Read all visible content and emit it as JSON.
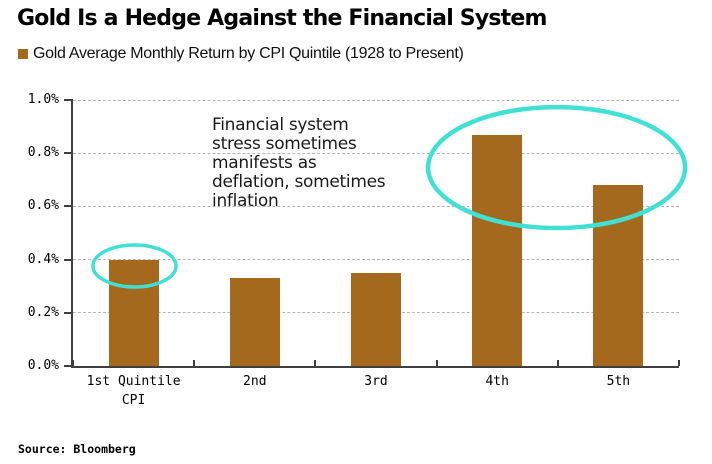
{
  "page": {
    "background": "#ffffff"
  },
  "header": {
    "title": "Gold Is a Hedge Against the Financial System"
  },
  "legend": {
    "swatch_color": "#A5691E",
    "label": "Gold Average Monthly Return by CPI Quintile (1928 to Present)"
  },
  "footer": {
    "source": "Source: Bloomberg"
  },
  "colors": {
    "bar": "#A5691E",
    "highlight": "#40E0D4",
    "grid": "#B3B3B3",
    "axis": "#3F3F3F",
    "text": "#000000"
  },
  "chart_data": {
    "type": "bar",
    "title": "Gold Average Monthly Return by CPI Quintile (1928 to Present)",
    "categories": [
      "1st Quintile\nCPI",
      "2nd",
      "3rd",
      "4th",
      "5th"
    ],
    "values": [
      0.4,
      0.33,
      0.35,
      0.87,
      0.68
    ],
    "value_format": "percent (average monthly return)",
    "xlabel": "",
    "ylabel": "",
    "ylim": [
      0.0,
      1.0
    ],
    "ytick_step": 0.2,
    "ytick_labels": [
      "0.0%",
      "0.2%",
      "0.4%",
      "0.6%",
      "0.8%",
      "1.0%"
    ],
    "grid": "horizontal-dashed",
    "legend_position": "top-left",
    "annotations": {
      "note": {
        "text": "Financial system stress sometimes manifests as deflation, sometimes inflation",
        "lines": [
          "Financial system",
          "stress sometimes",
          "manifests as",
          "deflation, sometimes",
          "inflation"
        ],
        "x_frac": 0.2294,
        "y_top_frac": 0.0602
      },
      "ellipses": [
        {
          "name": "highlight-1st-quintile",
          "cx_frac": 0.1015,
          "cy_value": 0.376,
          "rx_frac": 0.0685,
          "ry_value": 0.079,
          "stroke_px": 3.5
        },
        {
          "name": "highlight-4th-5th-quintiles",
          "cx_frac": 0.798,
          "cy_value": 0.746,
          "rx_frac": 0.212,
          "ry_value": 0.2274,
          "stroke_px": 4.5
        }
      ]
    }
  }
}
